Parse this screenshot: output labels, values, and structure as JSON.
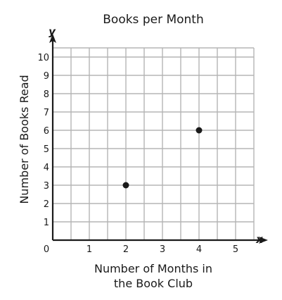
{
  "chart_data": {
    "type": "scatter",
    "title": "Books per Month",
    "xlabel": "Number of Months in the Book Club",
    "xlabel_lines": [
      "Number of Months in",
      "the Book Club"
    ],
    "ylabel": "Number of Books Read",
    "x_axis_letter": "x",
    "y_axis_letter": "y",
    "origin_label": "0",
    "xlim": [
      0,
      5.5
    ],
    "ylim": [
      0,
      10.5
    ],
    "x_ticks": [
      "1",
      "2",
      "3",
      "4",
      "5"
    ],
    "y_ticks": [
      "1",
      "2",
      "3",
      "4",
      "5",
      "6",
      "7",
      "8",
      "9",
      "10"
    ],
    "grid": true,
    "points": [
      {
        "x": 2,
        "y": 3
      },
      {
        "x": 4,
        "y": 6
      }
    ],
    "colors": {
      "grid": "#b5b5b5",
      "axis": "#1a1a1a",
      "point": "#1a1a1a"
    }
  }
}
